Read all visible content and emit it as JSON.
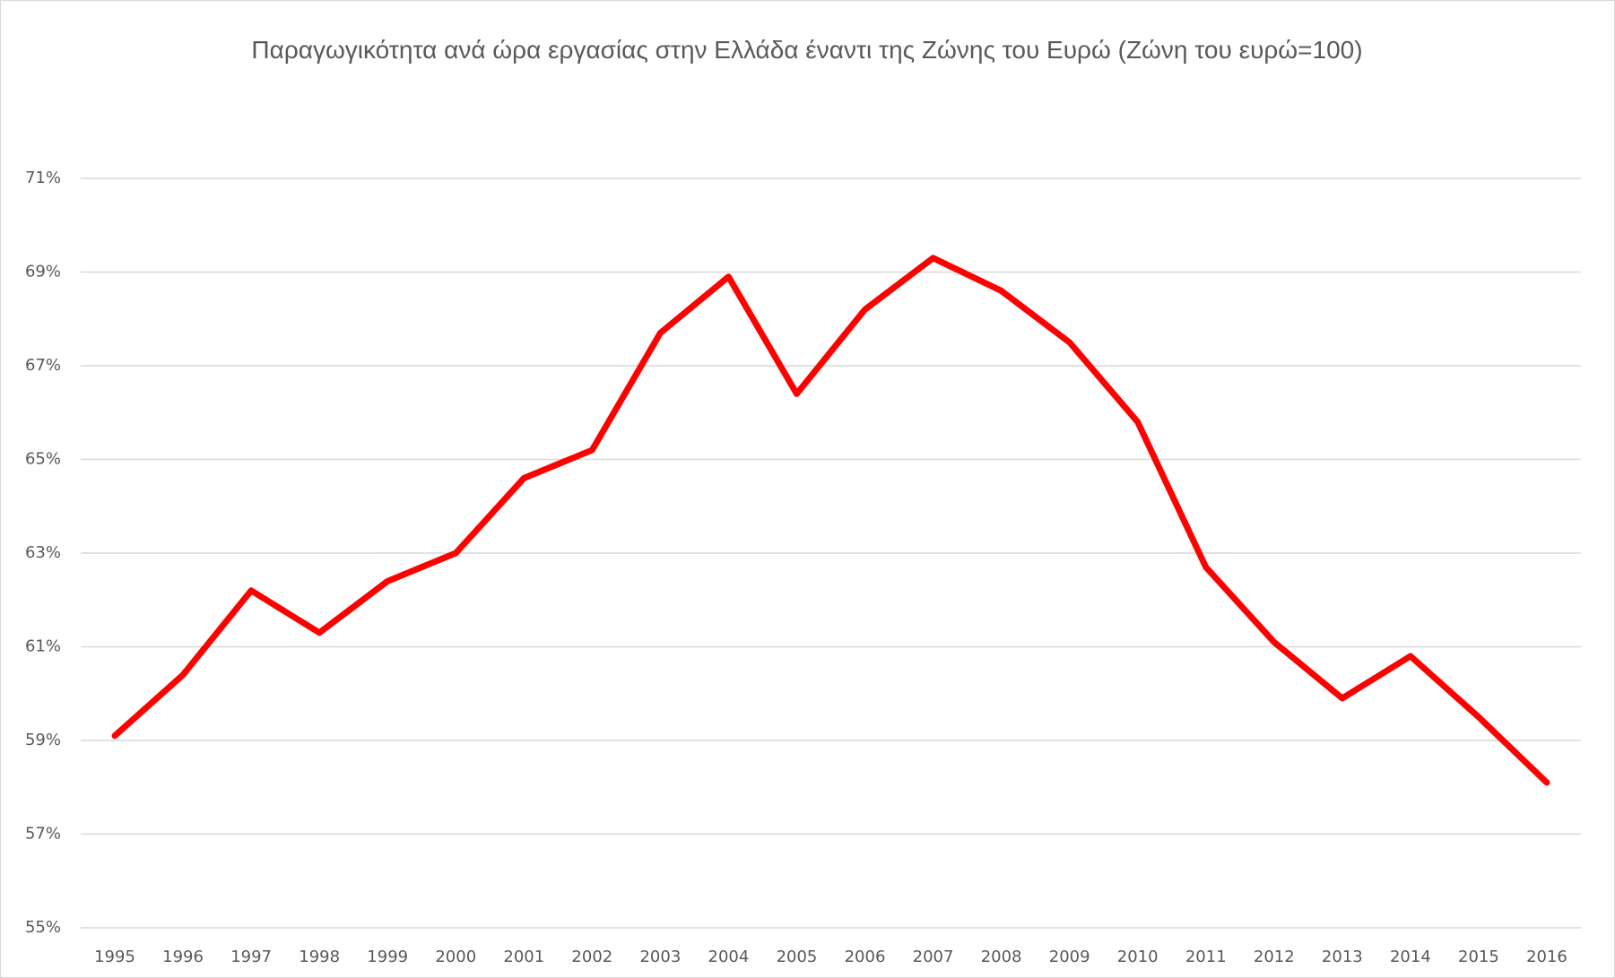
{
  "chart_data": {
    "type": "line",
    "title": "Παραγωγικότητα ανά ώρα εργασίας στην Ελλάδα έναντι της Ζώνης του  Ευρώ (Ζώνη του ευρώ=100)",
    "categories": [
      "1995",
      "1996",
      "1997",
      "1998",
      "1999",
      "2000",
      "2001",
      "2002",
      "2003",
      "2004",
      "2005",
      "2006",
      "2007",
      "2008",
      "2009",
      "2010",
      "2011",
      "2012",
      "2013",
      "2014",
      "2015",
      "2016"
    ],
    "series": [
      {
        "color": "#ff0000",
        "values": [
          59.1,
          60.4,
          62.2,
          61.3,
          62.4,
          63.0,
          64.6,
          65.2,
          67.7,
          68.9,
          66.4,
          68.2,
          69.3,
          68.6,
          67.5,
          65.8,
          62.7,
          61.1,
          59.9,
          60.8,
          59.5,
          58.1
        ]
      }
    ],
    "ylim": [
      55,
      71
    ],
    "yticks": [
      {
        "value": 55,
        "label": "55%"
      },
      {
        "value": 57,
        "label": "57%"
      },
      {
        "value": 59,
        "label": "59%"
      },
      {
        "value": 61,
        "label": "61%"
      },
      {
        "value": 63,
        "label": "63%"
      },
      {
        "value": 65,
        "label": "65%"
      },
      {
        "value": 67,
        "label": "67%"
      },
      {
        "value": 69,
        "label": "69%"
      },
      {
        "value": 71,
        "label": "71%"
      }
    ],
    "grid": true
  }
}
